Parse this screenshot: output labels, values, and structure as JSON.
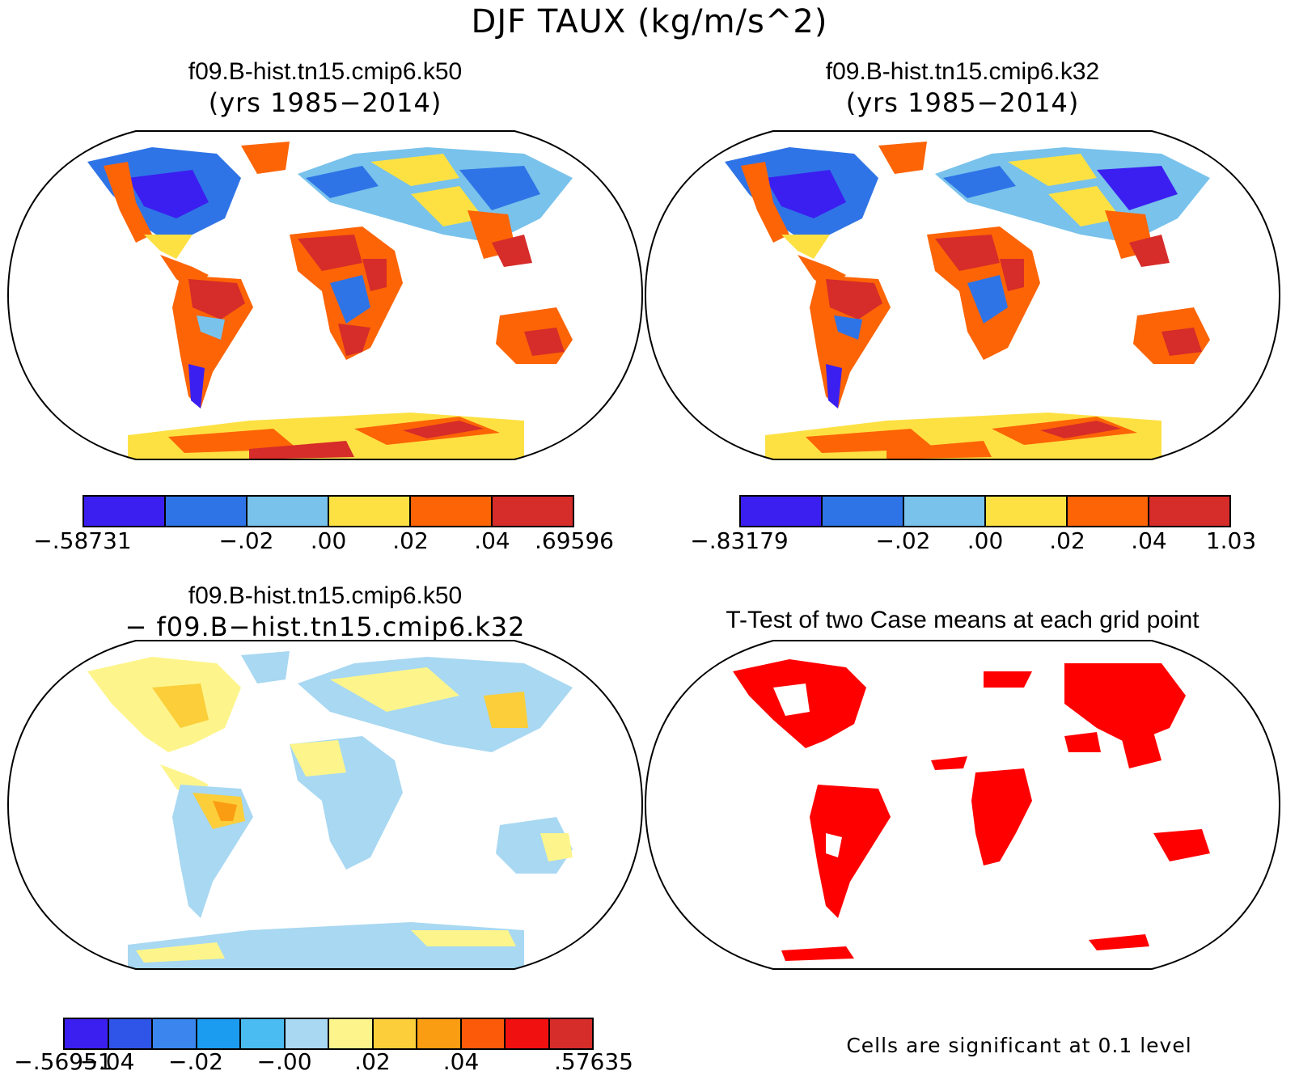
{
  "title": "DJF TAUX (kg/m/s^2)",
  "panels": [
    {
      "id": "k50",
      "title_line1": "f09.B-hist.tn15.cmip6.k50",
      "title_line2": "(yrs 1985−2014)",
      "colorbar": {
        "colors": [
          "#3b1ff0",
          "#2f74e6",
          "#78c2ec",
          "#fde143",
          "#fc6406",
          "#d62c2a"
        ],
        "labels": [
          "−.58731",
          "−.02",
          ".00",
          ".02",
          ".04",
          ".69596"
        ]
      }
    },
    {
      "id": "k32",
      "title_line1": "f09.B-hist.tn15.cmip6.k32",
      "title_line2": "(yrs 1985−2014)",
      "colorbar": {
        "colors": [
          "#3b1ff0",
          "#2f74e6",
          "#78c2ec",
          "#fde143",
          "#fc6406",
          "#d62c2a"
        ],
        "labels": [
          "−.83179",
          "−.02",
          ".00",
          ".02",
          ".04",
          "1.03"
        ]
      }
    },
    {
      "id": "diff",
      "title_line1": "f09.B-hist.tn15.cmip6.k50",
      "title_line2": "− f09.B−hist.tn15.cmip6.k32",
      "colorbar": {
        "colors": [
          "#3b1ff0",
          "#2f55e8",
          "#3a86ee",
          "#1c9cf0",
          "#4bbcf2",
          "#a8d8f2",
          "#fdf58c",
          "#fbce3a",
          "#fb9d12",
          "#fc5a08",
          "#f01010",
          "#d62c2a"
        ],
        "labels": [
          "−.56951",
          "−.04",
          "−.02",
          "−.00",
          ".02",
          ".04",
          ".57635"
        ]
      }
    },
    {
      "id": "ttest",
      "title_line1": "T-Test of two Case means at each grid point",
      "note": "Cells are significant at 0.1 level",
      "sig_color": "#ff0000"
    }
  ]
}
